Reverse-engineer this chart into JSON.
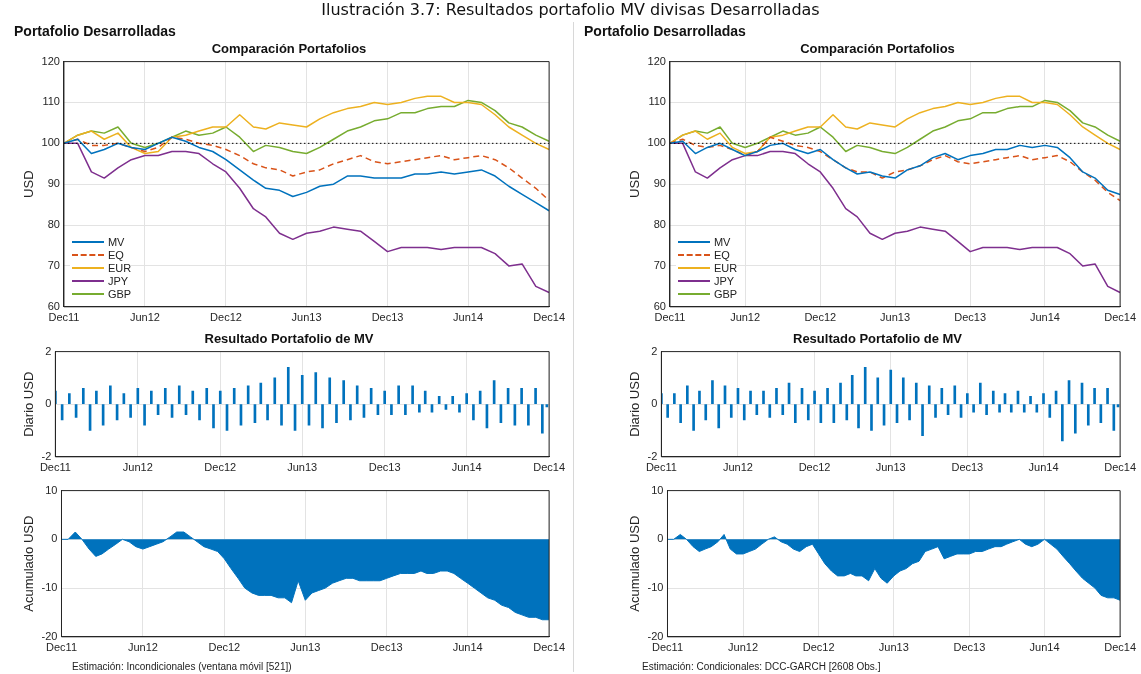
{
  "chart_data": [
    {
      "type": "line",
      "title": "Comparación Portafolios",
      "subtitle": "Portafolio Desarrolladas",
      "ylabel": "USD",
      "annotations": [
        "Ilustración 3.7: Resultados portafolio MV divisas Desarrolladas"
      ],
      "x": [
        "2011-12",
        "2012-01",
        "2012-02",
        "2012-03",
        "2012-04",
        "2012-05",
        "2012-06",
        "2012-07",
        "2012-08",
        "2012-09",
        "2012-10",
        "2012-11",
        "2012-12",
        "2013-01",
        "2013-02",
        "2013-03",
        "2013-04",
        "2013-05",
        "2013-06",
        "2013-07",
        "2013-08",
        "2013-09",
        "2013-10",
        "2013-11",
        "2013-12",
        "2014-01",
        "2014-02",
        "2014-03",
        "2014-04",
        "2014-05",
        "2014-06",
        "2014-07",
        "2014-08",
        "2014-09",
        "2014-10",
        "2014-11",
        "2014-12"
      ],
      "series": [
        {
          "name": "MV",
          "color": "#0072bd",
          "values": [
            100,
            101,
            97.5,
            98.5,
            100,
            99,
            98.5,
            100,
            101.5,
            100.5,
            99,
            98,
            96,
            93.5,
            91,
            89,
            88.5,
            87,
            88,
            89.5,
            90,
            92,
            92,
            91.5,
            91.5,
            91.5,
            92.5,
            92.5,
            93,
            92.5,
            93,
            93.5,
            92,
            89.5,
            87.5,
            85.5,
            83.5
          ]
        },
        {
          "name": "EQ",
          "color": "#d95319",
          "line_style": "dashed",
          "values": [
            100,
            101,
            99.5,
            99.5,
            100,
            99,
            98,
            99,
            101.5,
            101,
            100,
            99.5,
            98.5,
            97,
            95,
            94,
            93.5,
            92,
            93,
            93.5,
            95,
            96,
            97,
            95.5,
            95,
            95.5,
            96,
            96.5,
            97,
            96,
            96.5,
            97,
            96,
            94,
            91.5,
            89,
            86
          ]
        },
        {
          "name": "EUR",
          "color": "#edb120",
          "values": [
            100,
            102,
            103,
            101,
            102.5,
            99,
            97.5,
            98,
            101.5,
            102,
            103,
            104,
            104,
            107,
            104,
            103.5,
            105,
            104.5,
            104,
            106,
            107.5,
            108.5,
            109,
            110,
            109.5,
            110,
            111,
            111.5,
            111.5,
            110,
            110,
            109.5,
            107,
            104,
            102,
            100,
            98.5
          ]
        },
        {
          "name": "JPY",
          "color": "#7e2f8e",
          "values": [
            100,
            100,
            93,
            91.5,
            94,
            96,
            97,
            97,
            98,
            98,
            97.5,
            95,
            93,
            89,
            84,
            82,
            78,
            76.5,
            78,
            78.5,
            79.5,
            79,
            78.5,
            76,
            73.5,
            74.5,
            74.5,
            74.5,
            74,
            74.5,
            74.5,
            74.5,
            73,
            70,
            70.5,
            65,
            63.5
          ]
        },
        {
          "name": "GBP",
          "color": "#77ac30",
          "values": [
            100,
            102,
            103,
            102.5,
            104,
            100,
            99,
            100,
            101.5,
            103,
            102,
            102.5,
            104,
            101.5,
            98,
            99.5,
            99,
            98,
            97.5,
            99,
            101,
            103,
            104,
            105.5,
            106,
            107.5,
            107.5,
            108.5,
            109,
            109,
            110.5,
            110,
            108,
            105,
            104,
            102,
            100.5
          ]
        }
      ],
      "xlim": [
        "2011-12",
        "2014-12"
      ],
      "xticks": [
        {
          "value": "2011-12",
          "label": "Dec11"
        },
        {
          "value": "2012-06",
          "label": "Jun12"
        },
        {
          "value": "2012-12",
          "label": "Dec12"
        },
        {
          "value": "2013-06",
          "label": "Jun13"
        },
        {
          "value": "2013-12",
          "label": "Dec13"
        },
        {
          "value": "2014-06",
          "label": "Jun14"
        },
        {
          "value": "2014-12",
          "label": "Dec14"
        }
      ],
      "ylim": [
        60,
        120
      ],
      "yticks": [
        60,
        70,
        80,
        90,
        100,
        110,
        120
      ],
      "grid": true,
      "legend": "bottom left",
      "ref_lines": [
        {
          "axis": "y",
          "value": 100,
          "color": "#000000",
          "line_style": "dotted"
        }
      ]
    },
    {
      "type": "line",
      "title": "Comparación Portafolios",
      "subtitle": "Portafolio Desarrolladas",
      "ylabel": "USD",
      "x": [
        "2011-12",
        "2012-01",
        "2012-02",
        "2012-03",
        "2012-04",
        "2012-05",
        "2012-06",
        "2012-07",
        "2012-08",
        "2012-09",
        "2012-10",
        "2012-11",
        "2012-12",
        "2013-01",
        "2013-02",
        "2013-03",
        "2013-04",
        "2013-05",
        "2013-06",
        "2013-07",
        "2013-08",
        "2013-09",
        "2013-10",
        "2013-11",
        "2013-12",
        "2014-01",
        "2014-02",
        "2014-03",
        "2014-04",
        "2014-05",
        "2014-06",
        "2014-07",
        "2014-08",
        "2014-09",
        "2014-10",
        "2014-11",
        "2014-12"
      ],
      "series": [
        {
          "name": "MV",
          "color": "#0072bd",
          "values": [
            100,
            100.5,
            97.5,
            99,
            100,
            98.5,
            97,
            98,
            99.5,
            100,
            98.5,
            97.5,
            98.5,
            96,
            94,
            92.5,
            93,
            92,
            91.5,
            93.5,
            94.5,
            96.5,
            97.5,
            96,
            97,
            97.5,
            98.5,
            98.5,
            99.5,
            99,
            99.5,
            99,
            96.5,
            93,
            91.5,
            88.5,
            87.5
          ]
        },
        {
          "name": "EQ",
          "color": "#d95319",
          "line_style": "dashed",
          "values": [
            100,
            101,
            99.5,
            99,
            99.5,
            98.5,
            97,
            98,
            101.5,
            100.5,
            99.5,
            99,
            98,
            96,
            94,
            93,
            93,
            91.5,
            93,
            93.5,
            94.5,
            96,
            97,
            95.5,
            95,
            95.5,
            96,
            96.5,
            97,
            96,
            96.5,
            97,
            95.5,
            93,
            91,
            88,
            86
          ]
        },
        {
          "name": "EUR",
          "color": "#edb120",
          "values": [
            100,
            102,
            103,
            101,
            102.5,
            99,
            97.5,
            98,
            101.5,
            102,
            103,
            104,
            104,
            107,
            104,
            103.5,
            105,
            104.5,
            104,
            106,
            107.5,
            108.5,
            109,
            110,
            109.5,
            110,
            111,
            111.5,
            111.5,
            110,
            110,
            109.5,
            107,
            104,
            102,
            100,
            98.5
          ]
        },
        {
          "name": "JPY",
          "color": "#7e2f8e",
          "values": [
            100,
            100,
            93,
            91.5,
            94,
            96,
            97,
            97,
            98,
            98,
            97.5,
            95,
            93,
            89,
            84,
            82,
            78,
            76.5,
            78,
            78.5,
            79.5,
            79,
            78.5,
            76,
            73.5,
            74.5,
            74.5,
            74.5,
            74,
            74.5,
            74.5,
            74.5,
            73,
            70,
            70.5,
            65,
            63.5
          ]
        },
        {
          "name": "GBP",
          "color": "#77ac30",
          "values": [
            100,
            102,
            103,
            102.5,
            104,
            100,
            99,
            100,
            101.5,
            103,
            102,
            102.5,
            104,
            101.5,
            98,
            99.5,
            99,
            98,
            97.5,
            99,
            101,
            103,
            104,
            105.5,
            106,
            107.5,
            107.5,
            108.5,
            109,
            109,
            110.5,
            110,
            108,
            105,
            104,
            102,
            100.5
          ]
        }
      ],
      "xlim": [
        "2011-12",
        "2014-12"
      ],
      "xticks": [
        {
          "value": "2011-12",
          "label": "Dec11"
        },
        {
          "value": "2012-06",
          "label": "Jun12"
        },
        {
          "value": "2012-12",
          "label": "Dec12"
        },
        {
          "value": "2013-06",
          "label": "Jun13"
        },
        {
          "value": "2013-12",
          "label": "Dec13"
        },
        {
          "value": "2014-06",
          "label": "Jun14"
        },
        {
          "value": "2014-12",
          "label": "Dec14"
        }
      ],
      "ylim": [
        60,
        120
      ],
      "yticks": [
        60,
        70,
        80,
        90,
        100,
        110,
        120
      ],
      "grid": true,
      "legend": "bottom left",
      "ref_lines": [
        {
          "axis": "y",
          "value": 100,
          "color": "#000000",
          "line_style": "dotted"
        }
      ]
    },
    {
      "type": "bar",
      "title": "Resultado Portafolio de MV",
      "ylabel": "Diario USD",
      "color": "#0072bd",
      "x": [
        "2011-12-01",
        "2011-12-16",
        "2012-01-01",
        "2012-01-16",
        "2012-02-01",
        "2012-02-16",
        "2012-03-01",
        "2012-03-16",
        "2012-04-01",
        "2012-04-16",
        "2012-05-01",
        "2012-05-16",
        "2012-06-01",
        "2012-06-16",
        "2012-07-01",
        "2012-07-16",
        "2012-08-01",
        "2012-08-16",
        "2012-09-01",
        "2012-09-16",
        "2012-10-01",
        "2012-10-16",
        "2012-11-01",
        "2012-11-16",
        "2012-12-01",
        "2012-12-16",
        "2013-01-01",
        "2013-01-16",
        "2013-02-01",
        "2013-02-16",
        "2013-03-01",
        "2013-03-16",
        "2013-04-01",
        "2013-04-16",
        "2013-05-01",
        "2013-05-16",
        "2013-06-01",
        "2013-06-16",
        "2013-07-01",
        "2013-07-16",
        "2013-08-01",
        "2013-08-16",
        "2013-09-01",
        "2013-09-16",
        "2013-10-01",
        "2013-10-16",
        "2013-11-01",
        "2013-11-16",
        "2013-12-01",
        "2013-12-16",
        "2014-01-01",
        "2014-01-16",
        "2014-02-01",
        "2014-02-16",
        "2014-03-01",
        "2014-03-16",
        "2014-04-01",
        "2014-04-16",
        "2014-05-01",
        "2014-05-16",
        "2014-06-01",
        "2014-06-16",
        "2014-07-01",
        "2014-07-16",
        "2014-08-01",
        "2014-08-16",
        "2014-09-01",
        "2014-09-16",
        "2014-10-01",
        "2014-10-16",
        "2014-11-01",
        "2014-11-16",
        "2014-11-26"
      ],
      "values": [
        0.5,
        -0.6,
        0.4,
        -0.5,
        0.6,
        -1.0,
        0.5,
        -0.8,
        0.7,
        -0.6,
        0.4,
        -0.5,
        0.6,
        -0.8,
        0.5,
        -0.4,
        0.6,
        -0.5,
        0.7,
        -0.4,
        0.5,
        -0.6,
        0.6,
        -0.9,
        0.5,
        -1.0,
        0.6,
        -0.8,
        0.7,
        -0.7,
        0.8,
        -0.6,
        1.0,
        -0.8,
        1.4,
        -1.0,
        1.1,
        -0.8,
        1.2,
        -0.9,
        1.0,
        -0.7,
        0.9,
        -0.6,
        0.7,
        -0.5,
        0.6,
        -0.4,
        0.5,
        -0.4,
        0.7,
        -0.4,
        0.7,
        -0.3,
        0.5,
        -0.3,
        0.3,
        -0.2,
        0.3,
        -0.3,
        0.4,
        -0.6,
        0.5,
        -0.9,
        0.9,
        -0.7,
        0.6,
        -0.8,
        0.6,
        -0.8,
        0.6,
        -1.1,
        -0.1
      ],
      "xlim": [
        "2011-12",
        "2014-12"
      ],
      "xticks": [
        {
          "value": "2011-12",
          "label": "Dec11"
        },
        {
          "value": "2012-06",
          "label": "Jun12"
        },
        {
          "value": "2012-12",
          "label": "Dec12"
        },
        {
          "value": "2013-06",
          "label": "Jun13"
        },
        {
          "value": "2013-12",
          "label": "Dec13"
        },
        {
          "value": "2014-06",
          "label": "Jun14"
        },
        {
          "value": "2014-12",
          "label": "Dec14"
        }
      ],
      "ylim": [
        -2,
        2
      ],
      "yticks": [
        -2,
        0,
        2
      ],
      "grid": true
    },
    {
      "type": "bar",
      "title": "Resultado Portafolio de MV",
      "ylabel": "Diario USD",
      "color": "#0072bd",
      "x": [
        "2011-12-01",
        "2011-12-16",
        "2012-01-01",
        "2012-01-16",
        "2012-02-01",
        "2012-02-16",
        "2012-03-01",
        "2012-03-16",
        "2012-04-01",
        "2012-04-16",
        "2012-05-01",
        "2012-05-16",
        "2012-06-01",
        "2012-06-16",
        "2012-07-01",
        "2012-07-16",
        "2012-08-01",
        "2012-08-16",
        "2012-09-01",
        "2012-09-16",
        "2012-10-01",
        "2012-10-16",
        "2012-11-01",
        "2012-11-16",
        "2012-12-01",
        "2012-12-16",
        "2013-01-01",
        "2013-01-16",
        "2013-02-01",
        "2013-02-16",
        "2013-03-01",
        "2013-03-16",
        "2013-04-01",
        "2013-04-16",
        "2013-05-01",
        "2013-05-16",
        "2013-06-01",
        "2013-06-16",
        "2013-07-01",
        "2013-07-16",
        "2013-08-01",
        "2013-08-16",
        "2013-09-01",
        "2013-09-16",
        "2013-10-01",
        "2013-10-16",
        "2013-11-01",
        "2013-11-16",
        "2013-12-01",
        "2013-12-16",
        "2014-01-01",
        "2014-01-16",
        "2014-02-01",
        "2014-02-16",
        "2014-03-01",
        "2014-03-16",
        "2014-04-01",
        "2014-04-16",
        "2014-05-01",
        "2014-05-16",
        "2014-06-01",
        "2014-06-16",
        "2014-07-01",
        "2014-07-16",
        "2014-08-01",
        "2014-08-16",
        "2014-09-01",
        "2014-09-16",
        "2014-10-01",
        "2014-10-16",
        "2014-11-01",
        "2014-11-16",
        "2014-11-26"
      ],
      "values": [
        0.4,
        -0.5,
        0.4,
        -0.7,
        0.7,
        -1.0,
        0.5,
        -0.6,
        0.9,
        -0.9,
        0.7,
        -0.5,
        0.6,
        -0.6,
        0.5,
        -0.4,
        0.5,
        -0.5,
        0.6,
        -0.4,
        0.8,
        -0.7,
        0.6,
        -0.6,
        0.5,
        -0.7,
        0.6,
        -0.7,
        0.8,
        -0.6,
        1.1,
        -0.9,
        1.4,
        -1.0,
        1.0,
        -0.8,
        1.3,
        -0.7,
        1.0,
        -0.6,
        0.8,
        -1.2,
        0.7,
        -0.5,
        0.6,
        -0.4,
        0.7,
        -0.5,
        0.4,
        -0.3,
        0.8,
        -0.4,
        0.5,
        -0.3,
        0.4,
        -0.3,
        0.5,
        -0.3,
        0.3,
        -0.3,
        0.4,
        -0.5,
        0.5,
        -1.4,
        0.9,
        -1.1,
        0.8,
        -0.8,
        0.6,
        -0.7,
        0.6,
        -1.0,
        -0.1
      ],
      "xlim": [
        "2011-12",
        "2014-12"
      ],
      "xticks": [
        {
          "value": "2011-12",
          "label": "Dec11"
        },
        {
          "value": "2012-06",
          "label": "Jun12"
        },
        {
          "value": "2012-12",
          "label": "Dec12"
        },
        {
          "value": "2013-06",
          "label": "Jun13"
        },
        {
          "value": "2013-12",
          "label": "Dec13"
        },
        {
          "value": "2014-06",
          "label": "Jun14"
        },
        {
          "value": "2014-12",
          "label": "Dec14"
        }
      ],
      "ylim": [
        -2,
        2
      ],
      "yticks": [
        -2,
        0,
        2
      ],
      "grid": true
    },
    {
      "type": "area",
      "ylabel": "Acumulado USD",
      "color": "#0072bd",
      "annotations": [
        "Estimación: Incondicionales (ventana móvil [521])"
      ],
      "x": [
        "2011-12-01",
        "2011-12-16",
        "2012-01-01",
        "2012-01-16",
        "2012-02-01",
        "2012-02-16",
        "2012-03-01",
        "2012-03-16",
        "2012-04-01",
        "2012-04-16",
        "2012-05-01",
        "2012-05-16",
        "2012-06-01",
        "2012-06-16",
        "2012-07-01",
        "2012-07-16",
        "2012-08-01",
        "2012-08-16",
        "2012-09-01",
        "2012-09-16",
        "2012-10-01",
        "2012-10-16",
        "2012-11-01",
        "2012-11-16",
        "2012-12-01",
        "2012-12-16",
        "2013-01-01",
        "2013-01-16",
        "2013-02-01",
        "2013-02-16",
        "2013-03-01",
        "2013-03-16",
        "2013-04-01",
        "2013-04-16",
        "2013-05-01",
        "2013-05-16",
        "2013-06-01",
        "2013-06-16",
        "2013-07-01",
        "2013-07-16",
        "2013-08-01",
        "2013-08-16",
        "2013-09-01",
        "2013-09-16",
        "2013-10-01",
        "2013-10-16",
        "2013-11-01",
        "2013-11-16",
        "2013-12-01",
        "2013-12-16",
        "2014-01-01",
        "2014-01-16",
        "2014-02-01",
        "2014-02-16",
        "2014-03-01",
        "2014-03-16",
        "2014-04-01",
        "2014-04-16",
        "2014-05-01",
        "2014-05-16",
        "2014-06-01",
        "2014-06-16",
        "2014-07-01",
        "2014-07-16",
        "2014-08-01",
        "2014-08-16",
        "2014-09-01",
        "2014-09-16",
        "2014-10-01",
        "2014-10-16",
        "2014-11-01",
        "2014-11-16",
        "2014-12-01"
      ],
      "values": [
        0,
        0,
        1.5,
        0,
        -2,
        -3.5,
        -3,
        -2,
        -1,
        0,
        -0.5,
        -1.5,
        -2,
        -1.5,
        -1,
        -0.5,
        0.5,
        1.5,
        1.5,
        0.5,
        -0.5,
        -1.5,
        -2,
        -2.5,
        -4,
        -6,
        -8,
        -10,
        -11,
        -11.5,
        -11.5,
        -11.5,
        -12,
        -12,
        -13,
        -8.5,
        -12.5,
        -11,
        -10.5,
        -10,
        -9,
        -8.5,
        -8,
        -8,
        -8.5,
        -8.5,
        -8.5,
        -8.5,
        -8,
        -7.5,
        -7,
        -7,
        -7,
        -6.5,
        -7,
        -7,
        -6.5,
        -6.5,
        -7,
        -8,
        -9,
        -10,
        -11,
        -12,
        -12.5,
        -13.5,
        -14,
        -15,
        -15.5,
        -16,
        -16,
        -16.5,
        -16.5
      ],
      "xlim": [
        "2011-12",
        "2014-12"
      ],
      "xticks": [
        {
          "value": "2011-12",
          "label": "Dec11"
        },
        {
          "value": "2012-06",
          "label": "Jun12"
        },
        {
          "value": "2012-12",
          "label": "Dec12"
        },
        {
          "value": "2013-06",
          "label": "Jun13"
        },
        {
          "value": "2013-12",
          "label": "Dec13"
        },
        {
          "value": "2014-06",
          "label": "Jun14"
        },
        {
          "value": "2014-12",
          "label": "Dec14"
        }
      ],
      "ylim": [
        -20,
        10
      ],
      "yticks": [
        -20,
        -10,
        0,
        10
      ],
      "grid": true
    },
    {
      "type": "area",
      "ylabel": "Acumulado USD",
      "color": "#0072bd",
      "annotations": [
        "Estimación: Condicionales: DCC-GARCH [2608 Obs.]"
      ],
      "x": [
        "2011-12-01",
        "2011-12-16",
        "2012-01-01",
        "2012-01-16",
        "2012-02-01",
        "2012-02-16",
        "2012-03-01",
        "2012-03-16",
        "2012-04-01",
        "2012-04-16",
        "2012-05-01",
        "2012-05-16",
        "2012-06-01",
        "2012-06-16",
        "2012-07-01",
        "2012-07-16",
        "2012-08-01",
        "2012-08-16",
        "2012-09-01",
        "2012-09-16",
        "2012-10-01",
        "2012-10-16",
        "2012-11-01",
        "2012-11-16",
        "2012-12-01",
        "2012-12-16",
        "2013-01-01",
        "2013-01-16",
        "2013-02-01",
        "2013-02-16",
        "2013-03-01",
        "2013-03-16",
        "2013-04-01",
        "2013-04-16",
        "2013-05-01",
        "2013-05-16",
        "2013-06-01",
        "2013-06-16",
        "2013-07-01",
        "2013-07-16",
        "2013-08-01",
        "2013-08-16",
        "2013-09-01",
        "2013-09-16",
        "2013-10-01",
        "2013-10-16",
        "2013-11-01",
        "2013-11-16",
        "2013-12-01",
        "2013-12-16",
        "2014-01-01",
        "2014-01-16",
        "2014-02-01",
        "2014-02-16",
        "2014-03-01",
        "2014-03-16",
        "2014-04-01",
        "2014-04-16",
        "2014-05-01",
        "2014-05-16",
        "2014-06-01",
        "2014-06-16",
        "2014-07-01",
        "2014-07-16",
        "2014-08-01",
        "2014-08-16",
        "2014-09-01",
        "2014-09-16",
        "2014-10-01",
        "2014-10-16",
        "2014-11-01",
        "2014-11-16",
        "2014-12-01"
      ],
      "values": [
        0,
        0,
        1,
        0,
        -1.5,
        -2.5,
        -2,
        -1.5,
        -0.5,
        1,
        -2,
        -3,
        -3,
        -2.5,
        -2,
        -1,
        0,
        0.5,
        -0.5,
        -1,
        -2,
        -2.5,
        -1.5,
        -1,
        -3,
        -5,
        -6.5,
        -7.5,
        -7.5,
        -7,
        -7.5,
        -7.5,
        -8.5,
        -6,
        -8,
        -9,
        -7.5,
        -6.5,
        -6,
        -5,
        -4.5,
        -2.5,
        -2,
        -1.5,
        -4,
        -3.5,
        -3,
        -3,
        -3,
        -2.5,
        -2.5,
        -2,
        -1.5,
        -1.5,
        -1,
        -0.5,
        0,
        -1,
        -1.5,
        -1,
        0,
        -1,
        -2,
        -3.5,
        -5,
        -6.5,
        -8,
        -9,
        -10,
        -11.5,
        -12,
        -12,
        -12.5
      ],
      "xlim": [
        "2011-12",
        "2014-12"
      ],
      "xticks": [
        {
          "value": "2011-12",
          "label": "Dec11"
        },
        {
          "value": "2012-06",
          "label": "Jun12"
        },
        {
          "value": "2012-12",
          "label": "Dec12"
        },
        {
          "value": "2013-06",
          "label": "Jun13"
        },
        {
          "value": "2013-12",
          "label": "Dec13"
        },
        {
          "value": "2014-06",
          "label": "Jun14"
        },
        {
          "value": "2014-12",
          "label": "Dec14"
        }
      ],
      "ylim": [
        -20,
        10
      ],
      "yticks": [
        -20,
        -10,
        0,
        10
      ],
      "grid": true
    }
  ]
}
